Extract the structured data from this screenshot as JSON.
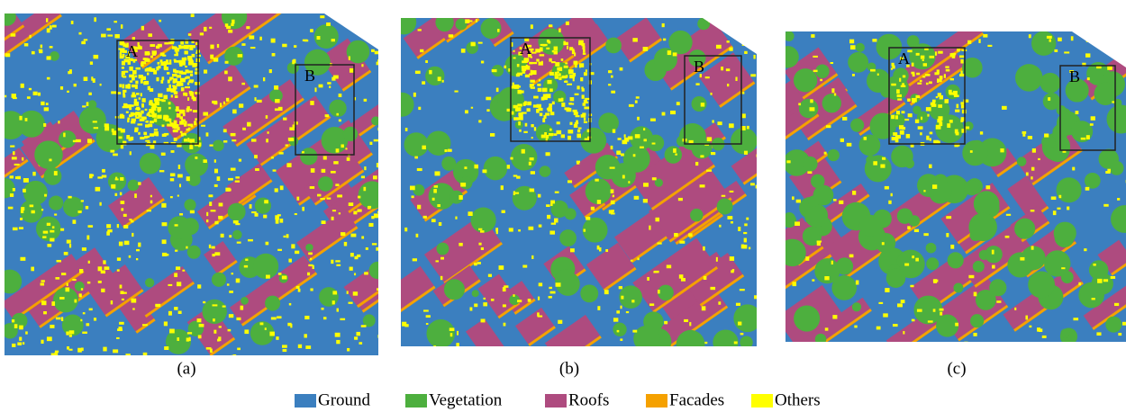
{
  "panels": [
    {
      "caption": "(a)",
      "regions": [
        "A",
        "B"
      ]
    },
    {
      "caption": "(b)",
      "regions": [
        "A",
        "B"
      ]
    },
    {
      "caption": "(c)",
      "regions": [
        "A",
        "B"
      ]
    }
  ],
  "legend": [
    {
      "label": "Ground",
      "color": "#3b7fbf"
    },
    {
      "label": "Vegetation",
      "color": "#4daf3e"
    },
    {
      "label": "Roofs",
      "color": "#ae4b7f"
    },
    {
      "label": "Facades",
      "color": "#f5a100"
    },
    {
      "label": "Others",
      "color": "#ffff00"
    }
  ]
}
